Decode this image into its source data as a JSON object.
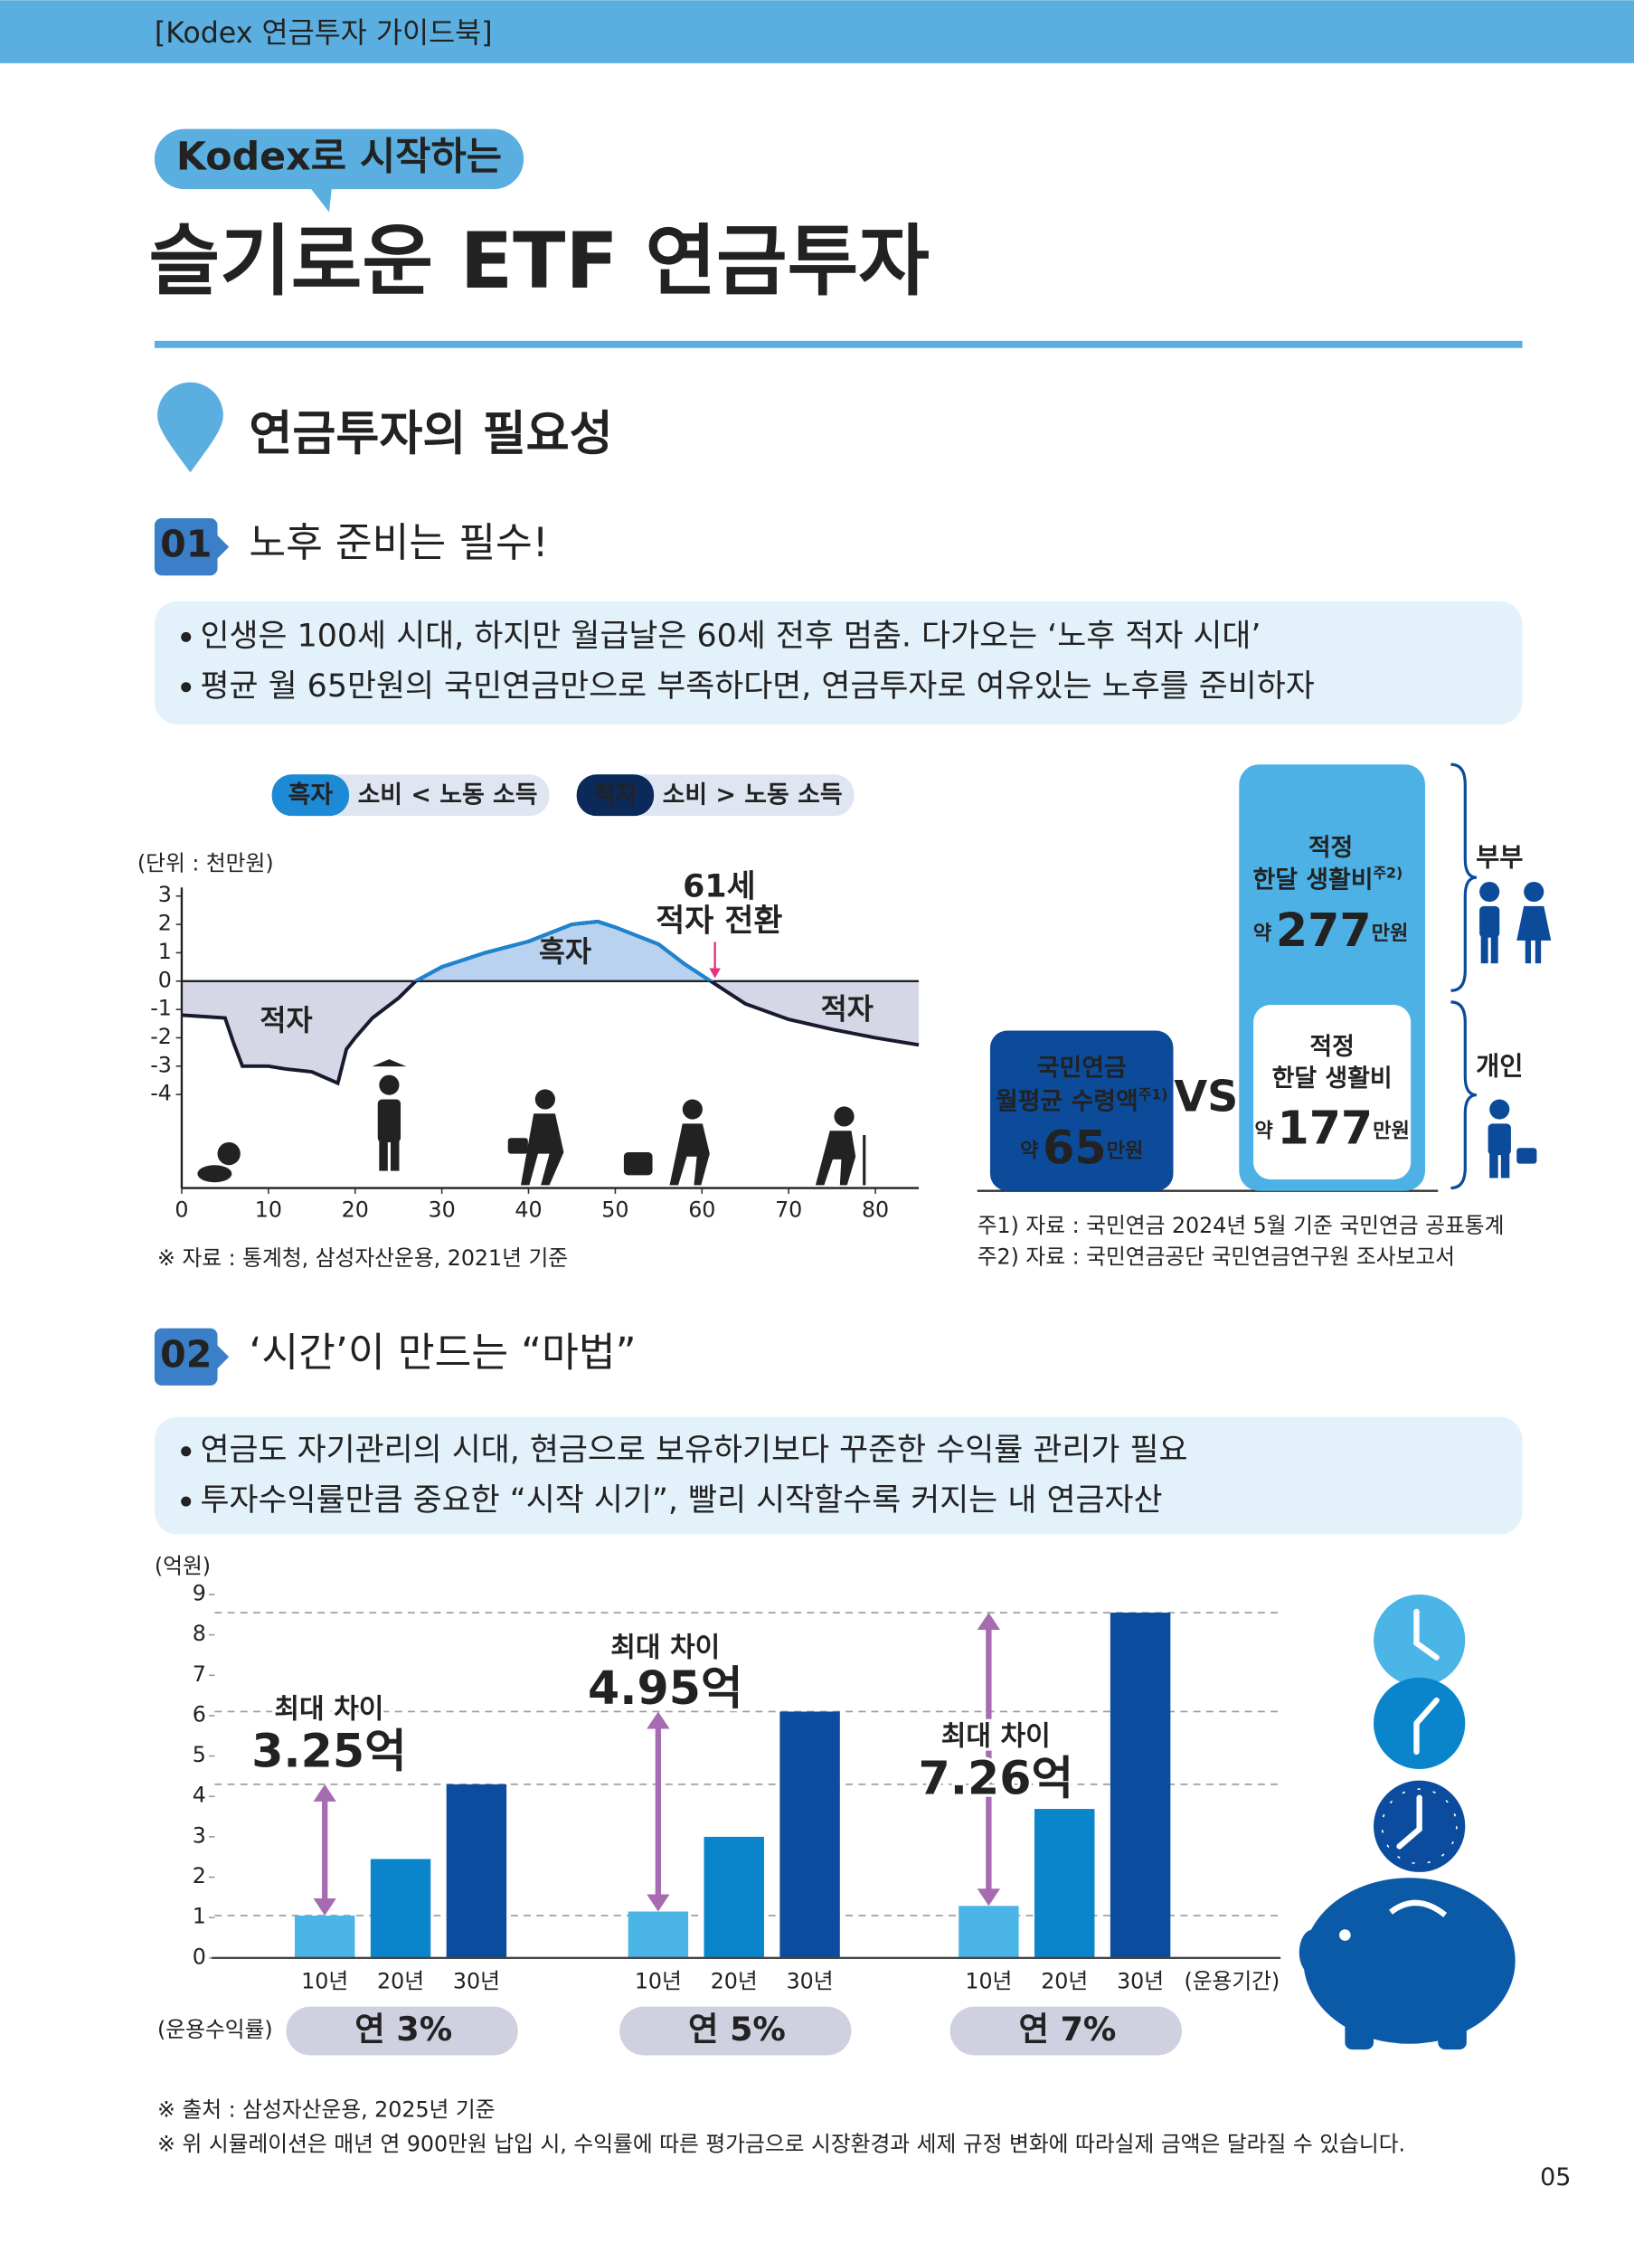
{
  "header": {
    "guide": "[Kodex 연금투자 가이드북]",
    "tag": "Kodex로 시작하는",
    "title": "슬기로운 ETF 연금투자"
  },
  "section_title": "연금투자의 필요성",
  "part1": {
    "number": "01",
    "title": "노후 준비는 필수!",
    "bullets": [
      "인생은 100세 시대, 하지만 월급날은 60세 전후 멈춤. 다가오는 ‘노후 적자 시대’",
      "평균 월 65만원의 국민연금만으로 부족하다면, 연금투자로 여유있는 노후를 준비하자"
    ],
    "legend": [
      {
        "tag": "흑자",
        "text": "소비 < 노동 소득"
      },
      {
        "tag": "적자",
        "text": "소비 > 노동 소득"
      }
    ],
    "chart_data": {
      "type": "area",
      "unit": "(단위 : 천만원)",
      "x": [
        0,
        5,
        6,
        7,
        10,
        12,
        15,
        18,
        19,
        20,
        22,
        25,
        27,
        30,
        35,
        40,
        45,
        48,
        50,
        55,
        58,
        61,
        63,
        65,
        70,
        75,
        80,
        85
      ],
      "values": [
        -1.2,
        -1.3,
        -2.2,
        -3.0,
        -3.0,
        -3.1,
        -3.2,
        -3.6,
        -2.4,
        -2.0,
        -1.3,
        -0.6,
        0,
        0.5,
        1.0,
        1.4,
        2.0,
        2.1,
        1.9,
        1.3,
        0.6,
        0,
        -0.4,
        -0.8,
        -1.35,
        -1.7,
        -2.0,
        -2.25
      ],
      "xlim": [
        0,
        85
      ],
      "xticks": [
        0,
        10,
        20,
        30,
        40,
        50,
        60,
        70,
        80
      ],
      "ylim": [
        -7.3,
        3.2
      ],
      "yticks": [
        3,
        2,
        1,
        0,
        -1,
        -2,
        -3,
        -4
      ],
      "annotation_age": "61세",
      "annotation_text": "적자 전환",
      "annotation_x": 61,
      "area_labels": [
        "적자",
        "흑자",
        "적자"
      ],
      "colors": {
        "line": "#1a1a2e",
        "surplus": "#b8d2ef",
        "deficit": "#d5d7e6"
      },
      "source": "※ 자료 : 통계청, 삼성자산운용, 2021년 기준"
    },
    "comparison": {
      "national": {
        "lines": [
          "국민연금",
          "월평균 수령액"
        ],
        "note_mark": "주1)",
        "prefix": "약",
        "amount": 65,
        "unit": "만원"
      },
      "vs": "VS",
      "couple": {
        "group": "부부",
        "lines": [
          "적정",
          "한달 생활비"
        ],
        "note_mark": "주2)",
        "prefix": "약",
        "amount": 277,
        "unit": "만원"
      },
      "single": {
        "group": "개인",
        "lines": [
          "적정",
          "한달 생활비"
        ],
        "prefix": "약",
        "amount": 177,
        "unit": "만원"
      },
      "notes": [
        "주1) 자료 : 국민연금 2024년 5월 기준 국민연금 공표통계",
        "주2) 자료 : 국민연금공단 국민연금연구원 조사보고서"
      ]
    }
  },
  "part2": {
    "number": "02",
    "title": "‘시간’이 만드는 “마법”",
    "bullets": [
      "연금도 자기관리의 시대, 현금으로 보유하기보다 꾸준한 수익률 관리가 필요",
      "투자수익률만큼 중요한 “시작 시기”, 빨리 시작할수록 커지는 내 연금자산"
    ],
    "chart_data": {
      "type": "bar",
      "unit": "(억원)",
      "categories": [
        "10년",
        "20년",
        "30년"
      ],
      "x_label": "(운용기간)",
      "group_label": "(운용수익률)",
      "groups": [
        {
          "name": "연 3%",
          "values": [
            1.05,
            2.45,
            4.3
          ],
          "diff_title": "최대 차이",
          "diff_label": "3.25억"
        },
        {
          "name": "연 5%",
          "values": [
            1.15,
            3.0,
            6.1
          ],
          "diff_title": "최대 차이",
          "diff_label": "4.95억"
        },
        {
          "name": "연 7%",
          "values": [
            1.29,
            3.69,
            8.55
          ],
          "diff_title": "최대 차이",
          "diff_label": "7.26억"
        }
      ],
      "colors": [
        "#4cb5e8",
        "#0a85cc",
        "#0b4c9e"
      ],
      "ylim": [
        0,
        9
      ],
      "yticks": [
        0,
        1,
        2,
        3,
        4,
        5,
        6,
        7,
        8,
        9
      ]
    },
    "sources": [
      "※ 출처 : 삼성자산운용, 2025년 기준",
      "※ 위 시뮬레이션은 매년 연 900만원 납입 시, 수익률에 따른 평가금으로 시장환경과 세제 규정 변화에 따라실제 금액은 달라질 수 있습니다."
    ]
  },
  "page_number": "05"
}
